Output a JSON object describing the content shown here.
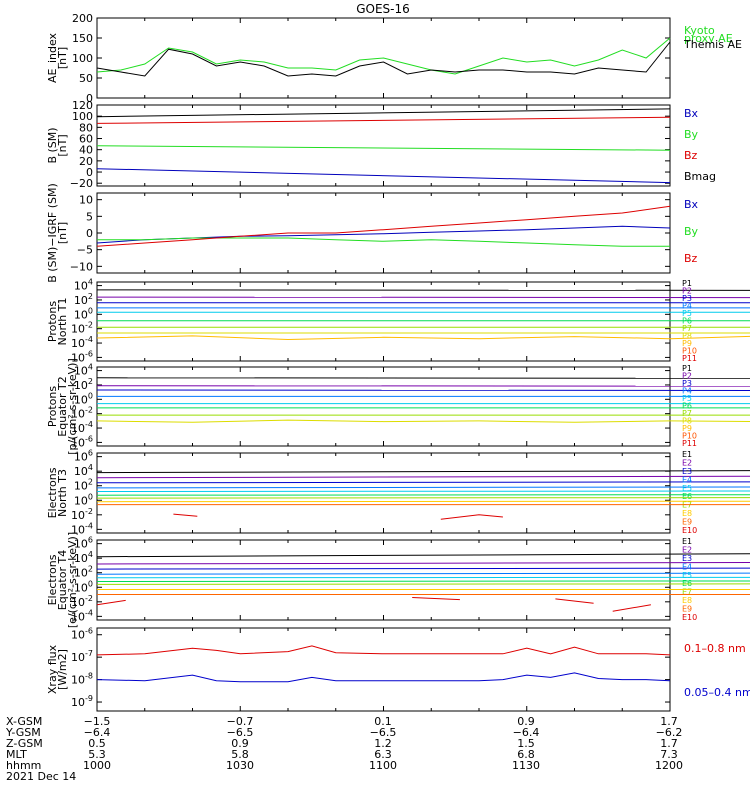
{
  "title": "GOES-16",
  "chart_data": [
    {
      "id": "ae",
      "type": "line",
      "ylabel": [
        "AE_index",
        "[nT]"
      ],
      "ylim": [
        0,
        200
      ],
      "yticks": [
        0,
        50,
        100,
        150,
        200
      ],
      "ytick_labels": [
        "0",
        "50",
        "100",
        "150",
        "200"
      ],
      "x": [
        1000,
        1005,
        1010,
        1015,
        1020,
        1025,
        1030,
        1035,
        1040,
        1045,
        1050,
        1055,
        1100,
        1105,
        1110,
        1115,
        1120,
        1125,
        1130,
        1135,
        1140,
        1145,
        1150,
        1155,
        1200
      ],
      "series": [
        {
          "name": "Kyoto proxy AE",
          "color": "#22dd22",
          "label_lines": [
            "Kyoto",
            "proxy AE"
          ],
          "values": [
            65,
            70,
            85,
            125,
            115,
            85,
            95,
            90,
            75,
            75,
            70,
            95,
            100,
            85,
            70,
            60,
            80,
            100,
            90,
            95,
            80,
            95,
            120,
            100,
            150
          ]
        },
        {
          "name": "Themis AE",
          "color": "#000000",
          "label_lines": [
            "Themis AE"
          ],
          "values": [
            75,
            65,
            55,
            122,
            110,
            80,
            90,
            80,
            55,
            60,
            55,
            80,
            90,
            60,
            70,
            65,
            70,
            70,
            65,
            65,
            60,
            75,
            70,
            65,
            140
          ]
        }
      ]
    },
    {
      "id": "b",
      "type": "line",
      "ylabel": [
        "B (SM)",
        "[nT]"
      ],
      "ylim": [
        -25,
        120
      ],
      "yticks": [
        -20,
        0,
        20,
        40,
        60,
        80,
        100,
        120
      ],
      "ytick_labels": [
        "−20",
        "0",
        "20",
        "40",
        "60",
        "80",
        "100",
        "120"
      ],
      "x": [
        1000,
        1200
      ],
      "series": [
        {
          "name": "Bx",
          "color": "#0000bb",
          "values": [
            6,
            -19
          ]
        },
        {
          "name": "By",
          "color": "#22dd22",
          "values": [
            47,
            39
          ]
        },
        {
          "name": "Bz",
          "color": "#dd0000",
          "values": [
            87,
            98
          ]
        },
        {
          "name": "Bmag",
          "color": "#000000",
          "values": [
            99,
            113
          ]
        }
      ]
    },
    {
      "id": "bigrf",
      "type": "line",
      "ylabel": [
        "B (SM)−IGRF (SM)",
        "[nT]"
      ],
      "ylim": [
        -12,
        12
      ],
      "yticks": [
        -10,
        -5,
        0,
        5,
        10
      ],
      "ytick_labels": [
        "−10",
        "−5",
        "0",
        "5",
        "10"
      ],
      "x": [
        1000,
        1010,
        1020,
        1030,
        1040,
        1050,
        1100,
        1110,
        1120,
        1130,
        1140,
        1150,
        1200
      ],
      "series": [
        {
          "name": "Bx",
          "color": "#0000bb",
          "values": [
            -3,
            -2,
            -1.5,
            -1,
            -0.8,
            -0.5,
            -0.2,
            0.2,
            0.6,
            1,
            1.5,
            2,
            1.5
          ]
        },
        {
          "name": "By",
          "color": "#22dd22",
          "values": [
            -2,
            -2,
            -1.5,
            -1.5,
            -1.5,
            -2,
            -2.5,
            -2,
            -2.5,
            -3,
            -3.5,
            -4,
            -4
          ]
        },
        {
          "name": "Bz",
          "color": "#dd0000",
          "values": [
            -4,
            -3,
            -2,
            -1,
            0,
            0,
            1,
            2,
            3,
            4,
            5,
            6,
            8
          ]
        }
      ]
    },
    {
      "id": "p1",
      "type": "line",
      "log": true,
      "ylabel": [
        "Protons",
        "North T1"
      ],
      "ylim": [
        -6.5,
        4.5
      ],
      "yticks": [
        4,
        2,
        0,
        -2,
        -4,
        -6
      ],
      "ytick_labels": [
        "10^4",
        "10^2",
        "10^0",
        "10^-2",
        "10^-4",
        "10^-6"
      ],
      "series": [
        {
          "name": "P1",
          "color": "#000000",
          "values": [
            3.4,
            3.3
          ]
        },
        {
          "name": "P2",
          "color": "#7700aa",
          "values": [
            2.4,
            2.3
          ]
        },
        {
          "name": "P3",
          "color": "#0000cc",
          "values": [
            1.6,
            1.6
          ]
        },
        {
          "name": "P4",
          "color": "#0077ff",
          "values": [
            0.9,
            0.9
          ]
        },
        {
          "name": "P5",
          "color": "#00ccee",
          "values": [
            0.3,
            0.3
          ]
        },
        {
          "name": "P6",
          "color": "#00dd55",
          "values": [
            -0.9,
            -0.9
          ]
        },
        {
          "name": "P7",
          "color": "#99dd00",
          "values": [
            -1.8,
            -1.8
          ]
        },
        {
          "name": "P8",
          "color": "#dddd00",
          "values": [
            -2.6,
            -2.6
          ]
        },
        {
          "name": "P9",
          "color": "#ffbb00",
          "values": [
            -3.3,
            -3.0,
            -3.5,
            -3.2,
            -3.4,
            -3.1,
            -3.4,
            -3.0,
            -3.4,
            -3.2,
            -3.3
          ]
        },
        {
          "name": "P10",
          "color": "#ff5500",
          "values": []
        },
        {
          "name": "P11",
          "color": "#dd0000",
          "values": []
        }
      ]
    },
    {
      "id": "p2",
      "type": "line",
      "log": true,
      "ylabel": [
        "Protons",
        "Equator T2",
        "[p/(cm²-s-sr-keV)]"
      ],
      "ylim": [
        -6.5,
        4.5
      ],
      "yticks": [
        4,
        2,
        0,
        -2,
        -4,
        -6
      ],
      "ytick_labels": [
        "10^4",
        "10^2",
        "10^0",
        "10^-2",
        "10^-4",
        "10^-6"
      ],
      "series": [
        {
          "name": "P1",
          "color": "#000000",
          "values": [
            3.0,
            2.9
          ]
        },
        {
          "name": "P2",
          "color": "#7700aa",
          "values": [
            1.9,
            1.8
          ]
        },
        {
          "name": "P3",
          "color": "#0000cc",
          "values": [
            1.3,
            1.2
          ]
        },
        {
          "name": "P4",
          "color": "#0077ff",
          "values": [
            0.4,
            0.4
          ]
        },
        {
          "name": "P5",
          "color": "#00ccee",
          "values": [
            -0.6,
            -0.6
          ]
        },
        {
          "name": "P6",
          "color": "#00dd55",
          "values": [
            -1.2,
            -1.2
          ]
        },
        {
          "name": "P7",
          "color": "#99dd00",
          "values": [
            -2.2,
            -2.2
          ]
        },
        {
          "name": "P8",
          "color": "#dddd00",
          "values": [
            -3.0,
            -3.2,
            -2.9,
            -3.1,
            -3.0,
            -3.2,
            -3.0,
            -3.1,
            -3.2,
            -3.0,
            -3.1
          ]
        },
        {
          "name": "P9",
          "color": "#ffbb00",
          "values": []
        },
        {
          "name": "P10",
          "color": "#ff5500",
          "values": []
        },
        {
          "name": "P11",
          "color": "#dd0000",
          "values": []
        }
      ]
    },
    {
      "id": "e3",
      "type": "line",
      "log": true,
      "ylabel": [
        "Electrons",
        "North T3"
      ],
      "ylim": [
        -4.5,
        6.5
      ],
      "yticks": [
        6,
        4,
        2,
        0,
        -2,
        -4
      ],
      "ytick_labels": [
        "10^6",
        "10^4",
        "10^2",
        "10^0",
        "10^-2",
        "10^-4"
      ],
      "series": [
        {
          "name": "E1",
          "color": "#000000",
          "values": [
            3.8,
            4.2
          ]
        },
        {
          "name": "E2",
          "color": "#7700aa",
          "values": [
            3.1,
            3.4
          ]
        },
        {
          "name": "E3",
          "color": "#0000cc",
          "values": [
            2.4,
            2.6
          ]
        },
        {
          "name": "E4",
          "color": "#0077ff",
          "values": [
            1.7,
            1.9
          ]
        },
        {
          "name": "E5",
          "color": "#00ccee",
          "values": [
            1.2,
            1.3
          ]
        },
        {
          "name": "E6",
          "color": "#00dd55",
          "values": [
            0.7,
            0.8
          ]
        },
        {
          "name": "E7",
          "color": "#99dd00",
          "values": [
            0.3,
            0.4
          ]
        },
        {
          "name": "E8",
          "color": "#ffcc00",
          "values": [
            -0.2,
            -0.1
          ]
        },
        {
          "name": "E9",
          "color": "#ff6600",
          "values": [
            -0.6,
            -0.6
          ]
        },
        {
          "name": "E10",
          "color": "#dd0000",
          "segments": [
            [
              [
                1016,
                -1.9
              ],
              [
                1021,
                -2.2
              ]
            ],
            [
              [
                1112,
                -2.6
              ],
              [
                1120,
                -2.0
              ],
              [
                1125,
                -2.3
              ]
            ]
          ]
        }
      ]
    },
    {
      "id": "e4",
      "type": "line",
      "log": true,
      "ylabel": [
        "Electrons",
        "Equator T4",
        "[e/(cm²-s-sr-keV)]"
      ],
      "ylim": [
        -4.5,
        6.5
      ],
      "yticks": [
        6,
        4,
        2,
        0,
        -2,
        -4
      ],
      "ytick_labels": [
        "10^6",
        "10^4",
        "10^2",
        "10^0",
        "10^-2",
        "10^-4"
      ],
      "series": [
        {
          "name": "E1",
          "color": "#000000",
          "values": [
            4.2,
            4.8
          ]
        },
        {
          "name": "E2",
          "color": "#7700aa",
          "values": [
            3.2,
            3.5
          ]
        },
        {
          "name": "E3",
          "color": "#0000cc",
          "values": [
            2.5,
            2.7
          ]
        },
        {
          "name": "E4",
          "color": "#0077ff",
          "values": [
            1.8,
            2.0
          ]
        },
        {
          "name": "E5",
          "color": "#00ccee",
          "values": [
            1.3,
            1.4
          ]
        },
        {
          "name": "E6",
          "color": "#00dd55",
          "values": [
            0.8,
            0.9
          ]
        },
        {
          "name": "E7",
          "color": "#99dd00",
          "values": [
            0.4,
            0.5
          ]
        },
        {
          "name": "E8",
          "color": "#ffcc00",
          "values": [
            -0.3,
            -0.3
          ]
        },
        {
          "name": "E9",
          "color": "#ff6600",
          "values": [
            -1.0,
            -1.0
          ]
        },
        {
          "name": "E10",
          "color": "#dd0000",
          "segments": [
            [
              [
                1000,
                -2.4
              ],
              [
                1006,
                -1.8
              ]
            ],
            [
              [
                1106,
                -1.4
              ],
              [
                1116,
                -1.7
              ]
            ],
            [
              [
                1136,
                -1.6
              ],
              [
                1144,
                -2.2
              ]
            ],
            [
              [
                1148,
                -3.3
              ],
              [
                1156,
                -2.4
              ]
            ]
          ]
        }
      ]
    },
    {
      "id": "xray",
      "type": "line",
      "log": true,
      "ylabel": [
        "Xray flux",
        "[W/m2]"
      ],
      "ylim": [
        -9.4,
        -5.7
      ],
      "yticks": [
        -6,
        -7,
        -8,
        -9
      ],
      "ytick_labels": [
        "10^-6",
        "10^-7",
        "10^-8",
        "10^-9"
      ],
      "x": [
        1000,
        1010,
        1020,
        1025,
        1030,
        1040,
        1045,
        1050,
        1100,
        1110,
        1120,
        1125,
        1130,
        1135,
        1140,
        1145,
        1150,
        1155,
        1200
      ],
      "series": [
        {
          "name": "0.1–0.8 nm",
          "color": "#dd0000",
          "values": [
            -6.9,
            -6.85,
            -6.6,
            -6.7,
            -6.85,
            -6.75,
            -6.5,
            -6.8,
            -6.85,
            -6.85,
            -6.85,
            -6.85,
            -6.6,
            -6.85,
            -6.55,
            -6.85,
            -6.85,
            -6.85,
            -6.9
          ]
        },
        {
          "name": "0.05–0.4 nm",
          "color": "#0000cc",
          "values": [
            -8.0,
            -8.05,
            -7.8,
            -8.05,
            -8.1,
            -8.1,
            -7.9,
            -8.05,
            -8.05,
            -8.05,
            -8.05,
            -8.0,
            -7.8,
            -7.9,
            -7.7,
            -7.95,
            -8.0,
            -8.0,
            -8.05
          ]
        }
      ]
    }
  ],
  "orbit_table": {
    "rows": [
      {
        "label": "X-GSM",
        "values": [
          "−1.5",
          "−0.7",
          "0.1",
          "0.9",
          "1.7"
        ]
      },
      {
        "label": "Y-GSM",
        "values": [
          "−6.4",
          "−6.5",
          "−6.5",
          "−6.4",
          "−6.2"
        ]
      },
      {
        "label": "Z-GSM",
        "values": [
          "0.5",
          "0.9",
          "1.2",
          "1.5",
          "1.7"
        ]
      },
      {
        "label": "MLT",
        "values": [
          "5.3",
          "5.8",
          "6.3",
          "6.8",
          "7.3"
        ]
      },
      {
        "label": "hhmm",
        "values": [
          "1000",
          "1030",
          "1100",
          "1130",
          "1200"
        ]
      }
    ],
    "date": "2021 Dec 14"
  }
}
